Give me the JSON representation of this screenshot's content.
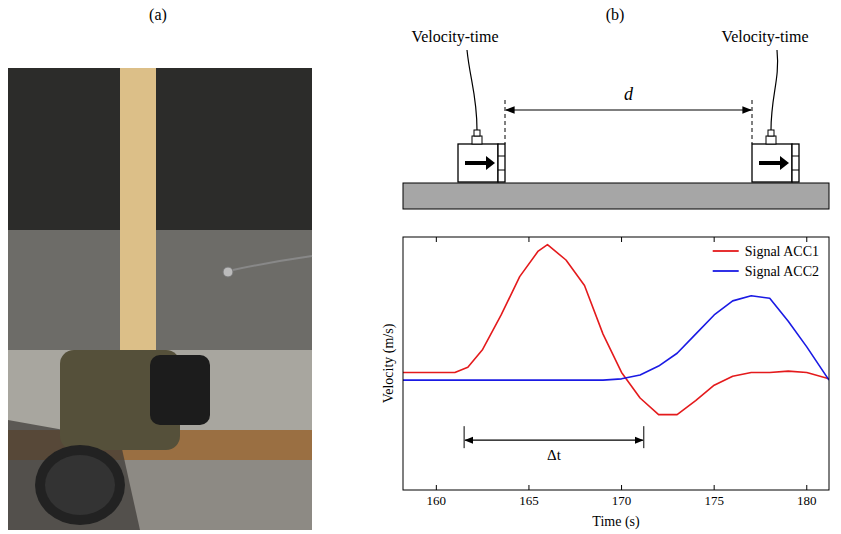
{
  "panel_labels": [
    "(a)",
    "(b)"
  ],
  "diagram": {
    "sensors": [
      {
        "label": "Velocity-time"
      },
      {
        "label": "Velocity-time"
      }
    ],
    "distance_label": "d"
  },
  "chart_data": {
    "type": "line",
    "x_label": "Time (s)",
    "y_label": "Velocity (m/s)",
    "x": [
      158.2,
      159,
      160,
      161,
      161.7,
      162.5,
      163.5,
      164.5,
      165.5,
      166,
      167,
      168,
      169,
      170,
      171,
      172,
      173,
      174,
      175,
      176,
      177,
      178,
      179,
      180,
      181.2
    ],
    "series": [
      {
        "name": "Signal ACC1",
        "color": "#e41a1c",
        "values": [
          0,
          0,
          0,
          0,
          0.04,
          0.18,
          0.45,
          0.75,
          0.95,
          1.0,
          0.88,
          0.68,
          0.3,
          0.0,
          -0.2,
          -0.33,
          -0.33,
          -0.22,
          -0.1,
          -0.03,
          0,
          0,
          0.01,
          0,
          -0.05
        ]
      },
      {
        "name": "Signal ACC2",
        "color": "#1a1ae4",
        "values": [
          -0.06,
          -0.06,
          -0.06,
          -0.06,
          -0.06,
          -0.06,
          -0.06,
          -0.06,
          -0.06,
          -0.06,
          -0.06,
          -0.06,
          -0.06,
          -0.05,
          -0.02,
          0.05,
          0.15,
          0.3,
          0.45,
          0.56,
          0.6,
          0.58,
          0.4,
          0.2,
          -0.06
        ]
      }
    ],
    "xlim": [
      158.2,
      181.2
    ],
    "xticks": [
      160,
      165,
      170,
      175,
      180
    ],
    "ylim": [
      -0.92,
      1.06
    ],
    "tick_labels": "x",
    "grid": false,
    "legend": "upper right",
    "annotations": [
      {
        "text": "Δt",
        "x": [
          161.5,
          171.2
        ],
        "y": -0.53
      }
    ]
  }
}
